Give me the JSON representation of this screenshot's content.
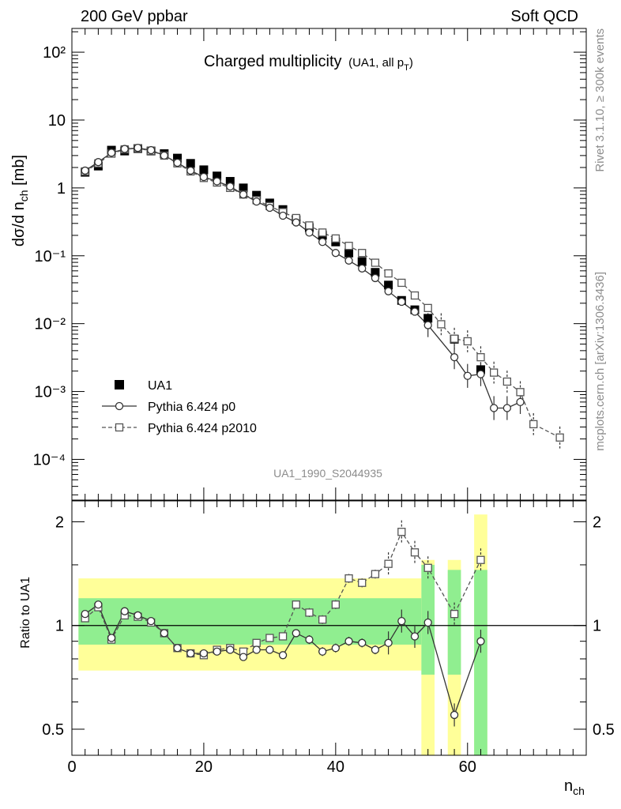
{
  "header": {
    "left": "200 GeV ppbar",
    "right": "Soft QCD"
  },
  "side_labels": {
    "rivet": "Rivet 3.1.10, ≥ 300k events",
    "mcplots": "mcplots.cern.ch [arXiv:1306.3436]"
  },
  "chart_data": {
    "type": "scatter",
    "title": "Charged multiplicity",
    "title_suffix": "(UA1, all p",
    "title_suffix_sub": "T",
    "title_suffix_end": ")",
    "analysis_id": "UA1_1990_S2044935",
    "xlabel": "n",
    "xlabel_sub": "ch",
    "ylabel": "dσ/d n",
    "ylabel_sub": "ch",
    "ylabel_unit": " [mb]",
    "ratio_ylabel": "Ratio to UA1",
    "xlim": [
      0,
      78
    ],
    "ylim_log10": [
      -4.6,
      2.35
    ],
    "ratio_ylim_log": [
      0.42,
      2.3
    ],
    "x_ticks": [
      0,
      20,
      40,
      60
    ],
    "y_tick_labels": [
      "10⁻⁴",
      "10⁻³",
      "10⁻²",
      "10⁻¹",
      "1",
      "10",
      "10²"
    ],
    "ratio_tick_labels": [
      "0.5",
      "1",
      "2"
    ],
    "legend": {
      "position": "bottom-left",
      "entries": [
        "UA1",
        "Pythia 6.424 p0",
        "Pythia 6.424 p2010"
      ]
    },
    "series": [
      {
        "name": "UA1",
        "x": [
          2,
          4,
          6,
          8,
          10,
          12,
          14,
          16,
          18,
          20,
          22,
          24,
          26,
          28,
          30,
          32,
          34,
          36,
          38,
          40,
          42,
          44,
          46,
          48,
          50,
          52,
          54,
          58,
          62
        ],
        "y": [
          1.7,
          2.1,
          3.6,
          3.5,
          3.8,
          3.5,
          3.2,
          2.75,
          2.3,
          1.85,
          1.5,
          1.25,
          1.0,
          0.78,
          0.6,
          0.48,
          0.34,
          0.26,
          0.2,
          0.16,
          0.11,
          0.082,
          0.057,
          0.037,
          0.022,
          0.016,
          0.012,
          0.0059,
          0.0021
        ],
        "band_x": [
          [
            1,
            53
          ],
          [
            53,
            55
          ],
          [
            57,
            59
          ],
          [
            61,
            63
          ]
        ],
        "band_green": [
          [
            0.88,
            1.2
          ],
          [
            0.72,
            1.5
          ],
          [
            0.72,
            1.45
          ],
          [
            0.42,
            1.45
          ]
        ],
        "band_yellow": [
          [
            0.74,
            1.37
          ],
          [
            0.42,
            1.55
          ],
          [
            0.42,
            1.55
          ],
          [
            0.42,
            2.1
          ]
        ]
      },
      {
        "name": "Pythia 6.424 p0",
        "x": [
          2,
          4,
          6,
          8,
          10,
          12,
          14,
          16,
          18,
          20,
          22,
          24,
          26,
          28,
          30,
          32,
          34,
          36,
          38,
          40,
          42,
          44,
          46,
          48,
          50,
          52,
          54,
          58,
          60,
          62,
          64,
          66,
          68
        ],
        "y": [
          1.8,
          2.4,
          3.3,
          3.75,
          3.9,
          3.6,
          3.0,
          2.35,
          1.8,
          1.45,
          1.25,
          1.05,
          0.8,
          0.63,
          0.51,
          0.39,
          0.31,
          0.22,
          0.16,
          0.11,
          0.085,
          0.065,
          0.047,
          0.03,
          0.021,
          0.015,
          0.0095,
          0.0032,
          0.0017,
          0.0018,
          0.00057,
          0.00057,
          0.0007
        ],
        "ratio_x": [
          2,
          4,
          6,
          8,
          10,
          12,
          14,
          16,
          18,
          20,
          22,
          24,
          26,
          28,
          30,
          32,
          34,
          36,
          38,
          40,
          42,
          44,
          46,
          48,
          50,
          52,
          54,
          58,
          62
        ],
        "ratio_y": [
          1.08,
          1.15,
          0.92,
          1.1,
          1.07,
          1.03,
          0.95,
          0.86,
          0.83,
          0.83,
          0.84,
          0.85,
          0.81,
          0.85,
          0.85,
          0.82,
          0.95,
          0.91,
          0.84,
          0.86,
          0.9,
          0.89,
          0.85,
          0.89,
          1.03,
          0.93,
          1.02,
          0.55,
          0.9
        ]
      },
      {
        "name": "Pythia 6.424 p2010",
        "x": [
          2,
          4,
          6,
          8,
          10,
          12,
          14,
          16,
          18,
          20,
          22,
          24,
          26,
          28,
          30,
          32,
          34,
          36,
          38,
          40,
          42,
          44,
          46,
          48,
          50,
          52,
          54,
          56,
          58,
          60,
          62,
          64,
          66,
          68,
          70,
          74
        ],
        "y": [
          1.75,
          2.3,
          3.2,
          3.7,
          3.85,
          3.5,
          3.0,
          2.3,
          1.75,
          1.4,
          1.2,
          1.0,
          0.8,
          0.66,
          0.54,
          0.44,
          0.36,
          0.28,
          0.22,
          0.18,
          0.14,
          0.11,
          0.079,
          0.055,
          0.04,
          0.026,
          0.017,
          0.0098,
          0.006,
          0.0055,
          0.0032,
          0.0019,
          0.0014,
          0.00098,
          0.00033,
          0.00021
        ],
        "ratio_x": [
          2,
          4,
          6,
          8,
          10,
          12,
          14,
          16,
          18,
          20,
          22,
          24,
          26,
          28,
          30,
          32,
          34,
          36,
          38,
          40,
          42,
          44,
          46,
          48,
          50,
          52,
          54,
          58,
          62
        ],
        "ratio_y": [
          1.05,
          1.13,
          0.91,
          1.07,
          1.06,
          1.02,
          0.95,
          0.86,
          0.83,
          0.82,
          0.85,
          0.86,
          0.84,
          0.89,
          0.92,
          0.93,
          1.15,
          1.09,
          1.04,
          1.15,
          1.37,
          1.33,
          1.41,
          1.51,
          1.87,
          1.63,
          1.47,
          1.08,
          1.55
        ]
      }
    ]
  }
}
